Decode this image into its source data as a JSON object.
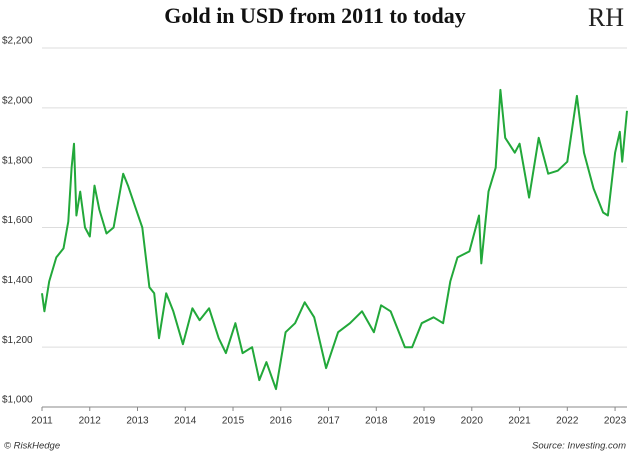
{
  "chart_data": {
    "type": "line",
    "title": "Gold in USD from 2011 to today",
    "logo": "RH",
    "credit": "© RiskHedge",
    "source": "Source: Investing.com",
    "x": [
      2011.0,
      2011.05,
      2011.15,
      2011.3,
      2011.45,
      2011.55,
      2011.62,
      2011.67,
      2011.72,
      2011.8,
      2011.9,
      2012.0,
      2012.1,
      2012.2,
      2012.35,
      2012.5,
      2012.7,
      2012.8,
      2012.95,
      2013.1,
      2013.25,
      2013.35,
      2013.45,
      2013.6,
      2013.75,
      2013.95,
      2014.15,
      2014.3,
      2014.5,
      2014.7,
      2014.85,
      2015.05,
      2015.2,
      2015.4,
      2015.55,
      2015.7,
      2015.9,
      2016.1,
      2016.3,
      2016.5,
      2016.7,
      2016.95,
      2017.2,
      2017.45,
      2017.7,
      2017.95,
      2018.1,
      2018.3,
      2018.6,
      2018.75,
      2018.95,
      2019.2,
      2019.4,
      2019.55,
      2019.7,
      2019.95,
      2020.15,
      2020.2,
      2020.35,
      2020.5,
      2020.6,
      2020.7,
      2020.9,
      2021.0,
      2021.2,
      2021.4,
      2021.6,
      2021.8,
      2022.0,
      2022.2,
      2022.35,
      2022.55,
      2022.75,
      2022.85,
      2023.0,
      2023.1,
      2023.15,
      2023.25
    ],
    "series": [
      {
        "name": "Gold",
        "color": "#22a83a",
        "values": [
          1380,
          1320,
          1420,
          1500,
          1530,
          1620,
          1800,
          1880,
          1640,
          1720,
          1600,
          1570,
          1740,
          1660,
          1580,
          1600,
          1780,
          1740,
          1670,
          1600,
          1400,
          1380,
          1230,
          1380,
          1320,
          1210,
          1330,
          1290,
          1330,
          1230,
          1180,
          1280,
          1180,
          1200,
          1090,
          1150,
          1060,
          1250,
          1280,
          1350,
          1300,
          1130,
          1250,
          1280,
          1320,
          1250,
          1340,
          1320,
          1200,
          1200,
          1280,
          1300,
          1280,
          1420,
          1500,
          1520,
          1640,
          1480,
          1720,
          1800,
          2060,
          1900,
          1850,
          1880,
          1700,
          1900,
          1780,
          1790,
          1820,
          2040,
          1850,
          1730,
          1650,
          1640,
          1850,
          1920,
          1820,
          1990
        ]
      }
    ],
    "xlim": [
      2011,
      2023.25
    ],
    "xticks": [
      2011,
      2012,
      2013,
      2014,
      2015,
      2016,
      2017,
      2018,
      2019,
      2020,
      2021,
      2022,
      2023
    ],
    "ylim": [
      1000,
      2200
    ],
    "yticks": [
      {
        "value": 1000,
        "label": "$1,000"
      },
      {
        "value": 1200,
        "label": "$1,200"
      },
      {
        "value": 1400,
        "label": "$1,400"
      },
      {
        "value": 1600,
        "label": "$1,600"
      },
      {
        "value": 1800,
        "label": "$1,800"
      },
      {
        "value": 2000,
        "label": "$2,000"
      },
      {
        "value": 2200,
        "label": "$2,200"
      }
    ],
    "grid": true
  }
}
